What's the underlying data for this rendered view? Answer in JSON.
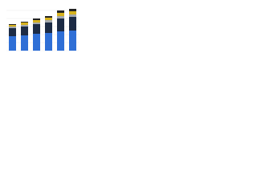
{
  "chart_data": {
    "type": "stacked-bar",
    "categories": [
      null,
      null,
      null,
      null,
      null,
      null
    ],
    "series": [
      {
        "color": "#2f6fd6",
        "values": [
          18,
          19,
          21,
          22,
          24,
          25
        ]
      },
      {
        "color": "#1c2b45",
        "values": [
          10,
          11,
          12,
          13,
          16,
          17
        ]
      },
      {
        "color": "#a3a8ae",
        "values": [
          2,
          2,
          2,
          3,
          3,
          3
        ]
      },
      {
        "color": "#d6b21e",
        "values": [
          2,
          3,
          3,
          3,
          4,
          4
        ]
      },
      {
        "color": "#232323",
        "values": [
          1,
          1,
          2,
          2,
          3,
          3
        ]
      }
    ],
    "ylim": [
      0,
      58
    ],
    "yticks": [
      0,
      10,
      20,
      30,
      40,
      50
    ],
    "grid": true
  }
}
